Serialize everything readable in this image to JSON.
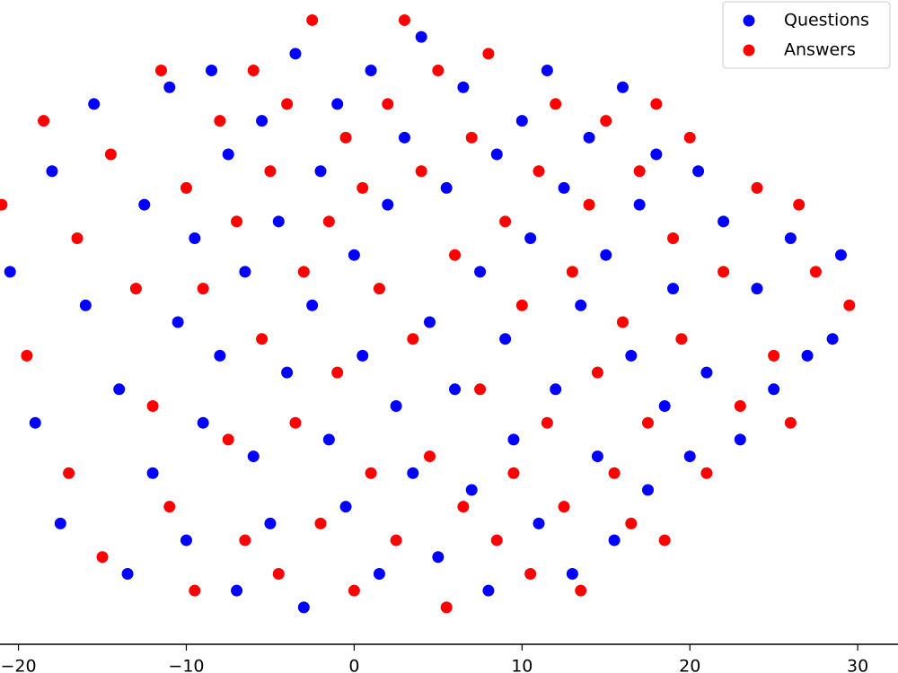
{
  "chart_data": {
    "type": "scatter",
    "xlim": [
      -21.1,
      32.4
    ],
    "ylim": [
      -19.2,
      19.2
    ],
    "xticks": [
      {
        "value": -20,
        "label": "−20"
      },
      {
        "value": -10,
        "label": "−10"
      },
      0,
      10,
      20,
      30
    ],
    "legend": "upper right",
    "series": [
      {
        "name": "Questions",
        "color": "#0000ff",
        "x": [
          -20.5,
          -19,
          -18,
          -17.5,
          -16,
          -15.5,
          -14,
          -13.5,
          -12.5,
          -12,
          -11,
          -10.5,
          -10,
          -9.5,
          -9,
          -8.5,
          -8,
          -7.5,
          -7,
          -6.5,
          -6,
          -5.5,
          -5,
          -4.5,
          -4,
          -3.5,
          -3,
          -2.5,
          -2,
          -1.5,
          -1,
          -0.5,
          0,
          0.5,
          1,
          1.5,
          2,
          2.5,
          3,
          3.5,
          4,
          4.5,
          5,
          5.5,
          6,
          6.5,
          7,
          7.5,
          8,
          8.5,
          9,
          9.5,
          10,
          10.5,
          11,
          11.5,
          12,
          12.5,
          13,
          13.5,
          14,
          14.5,
          15,
          15.5,
          16,
          16.5,
          17,
          17.5,
          18,
          18.5,
          19,
          20,
          20.5,
          21,
          22,
          23,
          24,
          25,
          26,
          27,
          29,
          28.5
        ],
        "values": [
          3,
          -6,
          9,
          -12,
          1,
          13,
          -4,
          -15,
          7,
          -9,
          14,
          0,
          -13,
          5,
          -6,
          15,
          -2,
          10,
          -16,
          3,
          -8,
          12,
          -12,
          6,
          -3,
          16,
          -17,
          1,
          9,
          -7,
          13,
          -11,
          4,
          -2,
          15,
          -15,
          7,
          -5,
          11,
          -9,
          17,
          0,
          -14,
          8,
          -4,
          14,
          -10,
          3,
          -16,
          10,
          -1,
          -7,
          12,
          5,
          -12,
          15,
          -4,
          8,
          -15,
          1,
          11,
          -8,
          4,
          -13,
          14,
          -2,
          7,
          -10,
          10,
          -5,
          2,
          -8,
          9,
          -3,
          6,
          -7,
          2,
          -4,
          5,
          -2,
          4,
          -1
        ]
      },
      {
        "name": "Answers",
        "color": "#ff0000",
        "x": [
          -21,
          -19.5,
          -18.5,
          -17,
          -16.5,
          -15,
          -14.5,
          -13,
          -12,
          -11.5,
          -11,
          -10,
          -9.5,
          -9,
          -8,
          -7.5,
          -7,
          -6.5,
          -6,
          -5.5,
          -5,
          -4.5,
          -4,
          -3.5,
          -3,
          -2.5,
          -2,
          -1.5,
          -1,
          -0.5,
          0,
          0.5,
          1,
          1.5,
          2,
          2.5,
          3,
          3.5,
          4,
          4.5,
          5,
          5.5,
          6,
          6.5,
          7,
          7.5,
          8,
          8.5,
          9,
          9.5,
          10,
          10.5,
          11,
          11.5,
          12,
          12.5,
          13,
          13.5,
          14,
          14.5,
          15,
          15.5,
          16,
          16.5,
          17,
          17.5,
          18,
          18.5,
          19,
          19.5,
          20,
          21,
          22,
          23,
          24,
          25,
          26,
          26.5,
          27.5,
          29.5
        ],
        "values": [
          7,
          -2,
          12,
          -9,
          5,
          -14,
          10,
          2,
          -5,
          15,
          -11,
          8,
          -16,
          2,
          12,
          -7,
          6,
          -13,
          15,
          -1,
          9,
          -15,
          13,
          -6,
          3,
          18,
          -12,
          6,
          -3,
          11,
          -16,
          8,
          -9,
          2,
          13,
          -13,
          18,
          -1,
          9,
          -8,
          15,
          -17,
          4,
          -11,
          11,
          -4,
          16,
          -13,
          6,
          -9,
          1,
          -15,
          9,
          -6,
          13,
          -11,
          3,
          -16,
          7,
          -3,
          12,
          -9,
          0,
          -12,
          9,
          -6,
          13,
          -13,
          5,
          -1,
          11,
          -9,
          3,
          -5,
          8,
          -2,
          -6,
          7,
          3,
          1
        ]
      }
    ]
  }
}
